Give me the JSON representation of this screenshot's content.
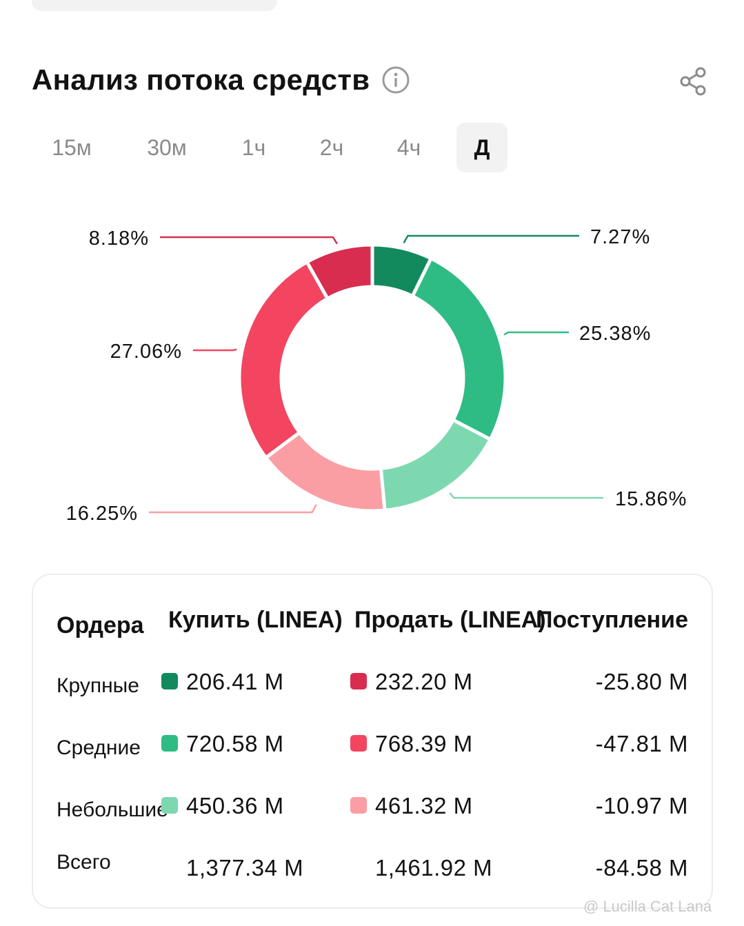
{
  "header": {
    "title": "Анализ потока средств",
    "info_icon": "info-circle-icon",
    "share_icon": "share-icon"
  },
  "timeframes": {
    "items": [
      "15м",
      "30м",
      "1ч",
      "2ч",
      "4ч",
      "Д"
    ],
    "selected": "Д"
  },
  "chart_data": {
    "type": "pie",
    "donut": true,
    "slices": [
      {
        "label": "7.27%",
        "value": 7.27,
        "color": "#128a5e",
        "group": "buy-large"
      },
      {
        "label": "25.38%",
        "value": 25.38,
        "color": "#2ebc84",
        "group": "buy-medium"
      },
      {
        "label": "15.86%",
        "value": 15.86,
        "color": "#7dd8b0",
        "group": "buy-small"
      },
      {
        "label": "16.25%",
        "value": 16.25,
        "color": "#fb9ea3",
        "group": "sell-small"
      },
      {
        "label": "27.06%",
        "value": 27.06,
        "color": "#f34560",
        "group": "sell-medium"
      },
      {
        "label": "8.18%",
        "value": 8.18,
        "color": "#d82d4f",
        "group": "sell-large"
      }
    ]
  },
  "table": {
    "headers": {
      "orders": "Ордера",
      "buy": "Купить (LINEA)",
      "sell": "Продать (LINEA)",
      "inflow": "Поступление"
    },
    "rows": [
      {
        "label": "Крупные",
        "buy": "206.41 M",
        "sell": "232.20 M",
        "inflow": "-25.80 M",
        "buy_color": "#128a5e",
        "sell_color": "#d82d4f"
      },
      {
        "label": "Средние",
        "buy": "720.58 M",
        "sell": "768.39 M",
        "inflow": "-47.81 M",
        "buy_color": "#2ebc84",
        "sell_color": "#f34560"
      },
      {
        "label": "Небольшие",
        "buy": "450.36 M",
        "sell": "461.32 M",
        "inflow": "-10.97 M",
        "buy_color": "#7dd8b0",
        "sell_color": "#fb9ea3"
      }
    ],
    "total": {
      "label": "Всего",
      "buy": "1,377.34 M",
      "sell": "1,461.92 M",
      "inflow": "-84.58 M"
    }
  },
  "watermark": "@ Lucilla Cat Lana"
}
